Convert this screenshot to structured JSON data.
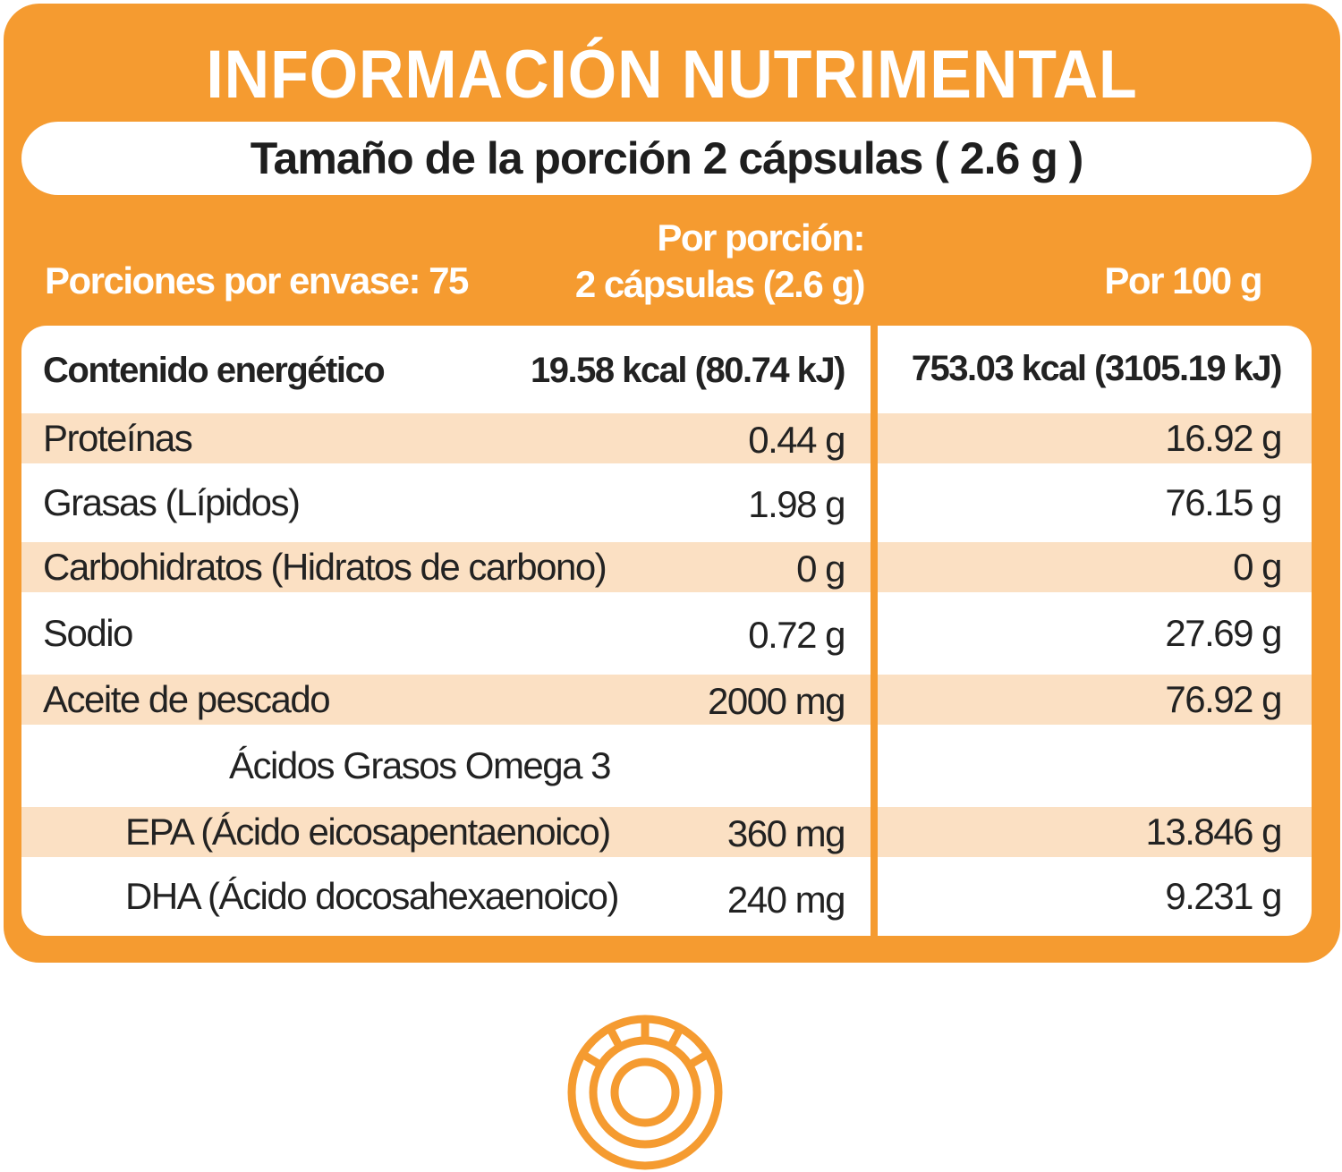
{
  "title": "INFORMACIÓN NUTRIMENTAL",
  "serving_size": "Tamaño de la porción 2 cápsulas ( 2.6 g )",
  "headers": {
    "portions_per_container": "Porciones por envase: 75",
    "per_portion_line1": "Por porción:",
    "per_portion_line2": "2 cápsulas (2.6 g)",
    "per_100g": "Por 100 g"
  },
  "rows": [
    {
      "label": "Contenido energético",
      "per_portion": "19.58 kcal (80.74 kJ)",
      "per_100g": "753.03 kcal (3105.19 kJ)"
    },
    {
      "label": "Proteínas",
      "per_portion": "0.44 g",
      "per_100g": "16.92 g"
    },
    {
      "label": "Grasas (Lípidos)",
      "per_portion": "1.98 g",
      "per_100g": "76.15 g"
    },
    {
      "label": "Carbohidratos (Hidratos de carbono)",
      "per_portion": "0 g",
      "per_100g": "0 g"
    },
    {
      "label": "Sodio",
      "per_portion": "0.72 g",
      "per_100g": "27.69 g"
    },
    {
      "label": "Aceite de pescado",
      "per_portion": "2000 mg",
      "per_100g": "76.92 g"
    },
    {
      "label": "Ácidos Grasos Omega 3",
      "per_portion": "",
      "per_100g": ""
    },
    {
      "label": "EPA (Ácido eicosapentaenoico)",
      "per_portion": "360 mg",
      "per_100g": "13.846 g"
    },
    {
      "label": "DHA (Ácido docosahexaenoico)",
      "per_portion": "240 mg",
      "per_100g": "9.231 g"
    }
  ],
  "colors": {
    "accent": "#F59B30",
    "row_shade": "#FBE0C3",
    "text": "#222222"
  },
  "icons": {
    "bottom_logo": "concentric-ring-emblem-icon"
  }
}
